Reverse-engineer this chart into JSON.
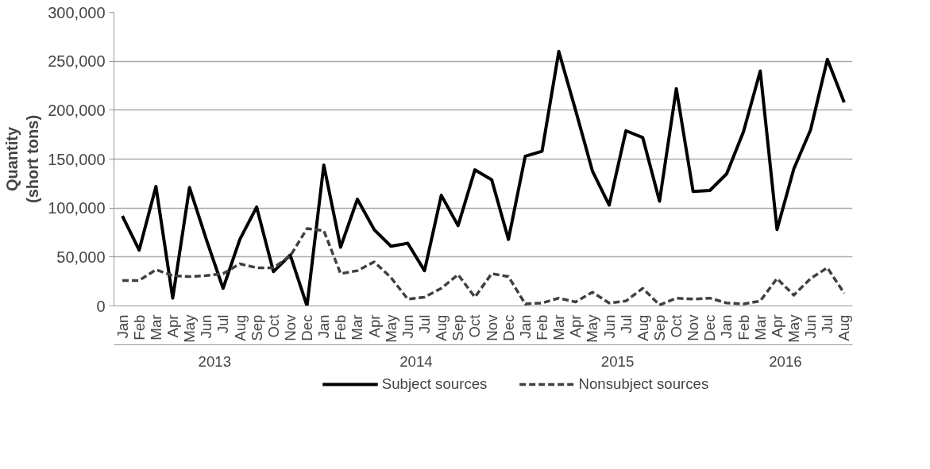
{
  "chart_data": {
    "type": "line",
    "ylabel": "Quantity\n(short tons)",
    "categories": [
      "Jan",
      "Feb",
      "Mar",
      "Apr",
      "May",
      "Jun",
      "Jul",
      "Aug",
      "Sep",
      "Oct",
      "Nov",
      "Dec",
      "Jan",
      "Feb",
      "Mar",
      "Apr",
      "May",
      "Jun",
      "Jul",
      "Aug",
      "Sep",
      "Oct",
      "Nov",
      "Dec",
      "Jan",
      "Feb",
      "Mar",
      "Apr",
      "May",
      "Jun",
      "Jul",
      "Aug",
      "Sep",
      "Oct",
      "Nov",
      "Dec",
      "Jan",
      "Feb",
      "Mar",
      "Apr",
      "May",
      "Jun",
      "Jul",
      "Aug"
    ],
    "series": [
      {
        "name": "Subject sources",
        "color": "#000000",
        "line_style": "solid",
        "values": [
          92000,
          57000,
          122000,
          8000,
          121000,
          68000,
          18000,
          68000,
          101000,
          35000,
          52000,
          0,
          144000,
          60000,
          109000,
          78000,
          61000,
          64000,
          36000,
          113000,
          82000,
          139000,
          129000,
          68000,
          153000,
          158000,
          260000,
          200000,
          138000,
          103000,
          179000,
          172000,
          107000,
          222000,
          117000,
          118000,
          135000,
          178000,
          240000,
          78000,
          140000,
          180000,
          252000,
          208000
        ]
      },
      {
        "name": "Nonsubject sources",
        "color": "#404040",
        "line_style": "dashed",
        "values": [
          26000,
          26000,
          37000,
          31000,
          30000,
          31000,
          33000,
          43000,
          39000,
          39000,
          51000,
          79000,
          77000,
          33000,
          36000,
          45000,
          29000,
          7000,
          9000,
          18000,
          32000,
          9000,
          33000,
          30000,
          2000,
          3000,
          8000,
          4000,
          14000,
          3000,
          5000,
          18000,
          1000,
          8000,
          7000,
          8000,
          3000,
          2000,
          5000,
          28000,
          11000,
          28000,
          39000,
          13000
        ]
      }
    ],
    "annotations": [
      "2013",
      "2014",
      "2015",
      "2016"
    ],
    "ylim": [
      0,
      300000
    ],
    "yticks": [
      {
        "value": 0,
        "label": "0"
      },
      {
        "value": 50000,
        "label": "50,000"
      },
      {
        "value": 100000,
        "label": "100,000"
      },
      {
        "value": 150000,
        "label": "150,000"
      },
      {
        "value": 200000,
        "label": "200,000"
      },
      {
        "value": 250000,
        "label": "250,000"
      },
      {
        "value": 300000,
        "label": "300,000"
      }
    ],
    "grid": "y",
    "legend": "bottom",
    "marker": "none"
  }
}
